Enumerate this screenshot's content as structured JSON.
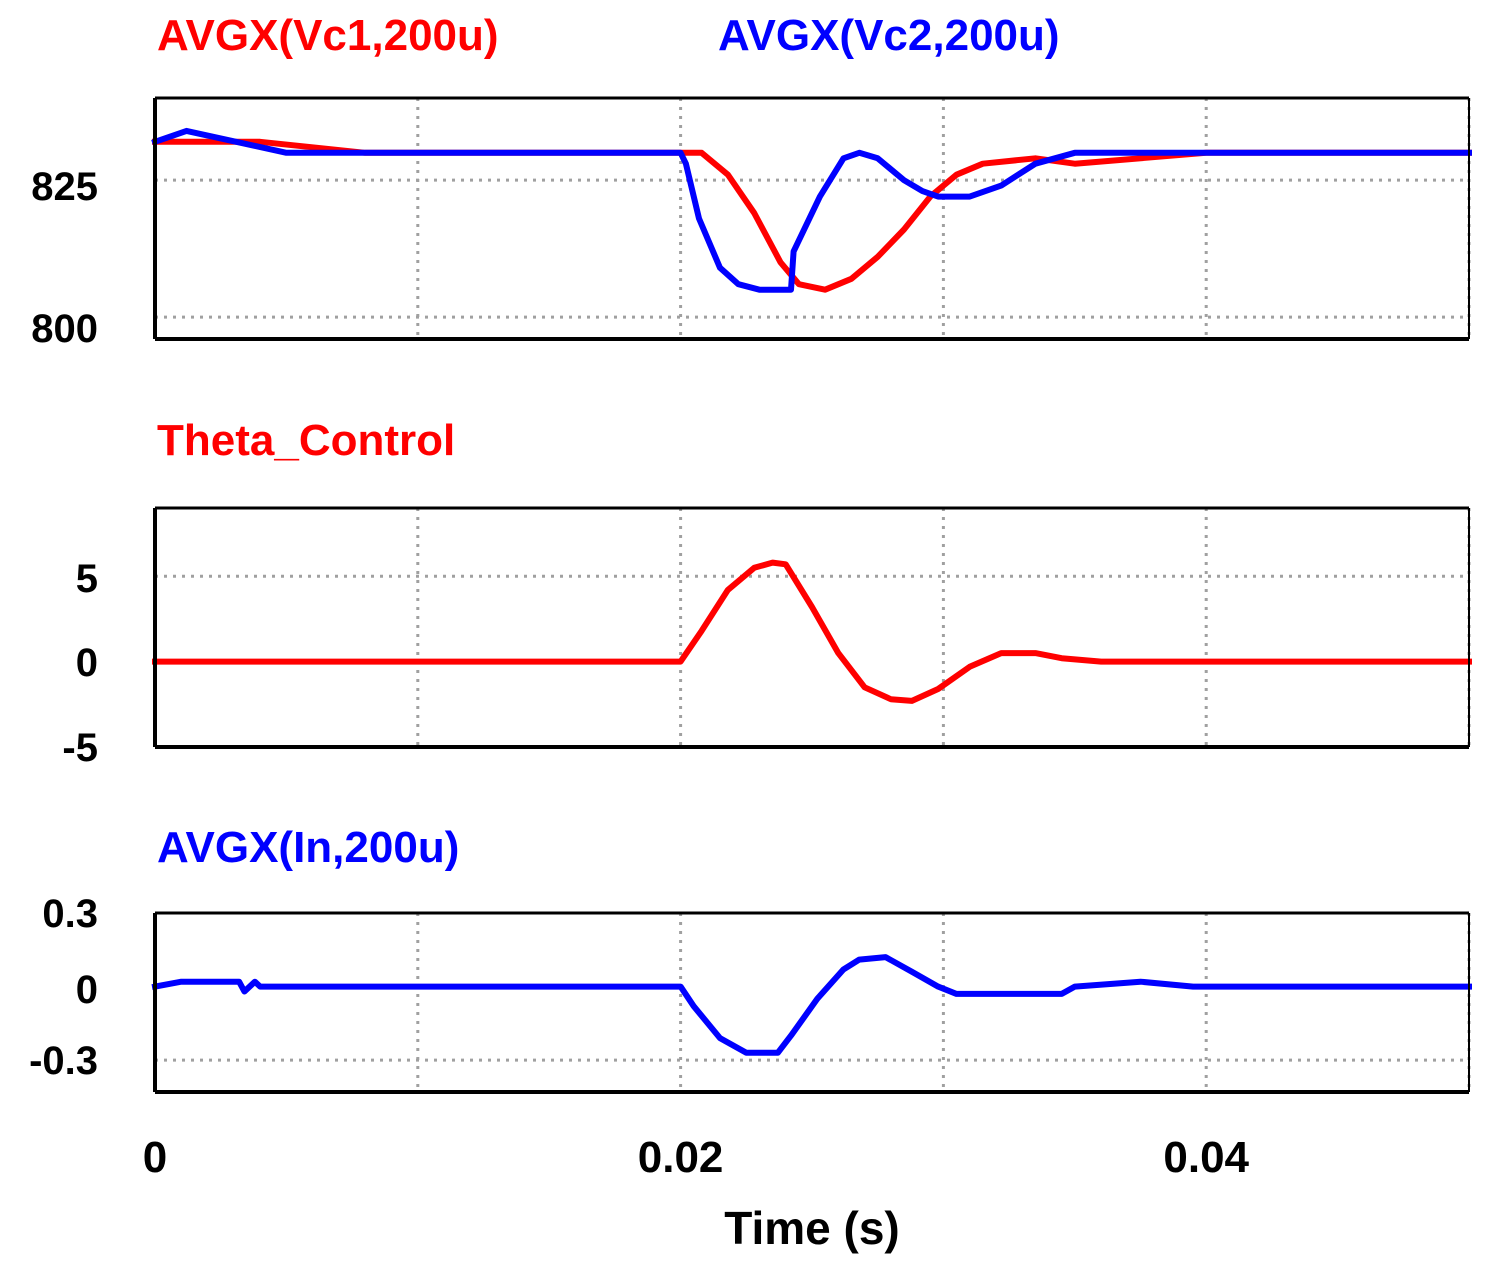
{
  "x_axis": {
    "label": "Time (s)",
    "range": [
      0,
      0.05
    ],
    "ticks": [
      0,
      0.02,
      0.04
    ],
    "tick_labels": [
      "0",
      "0.02",
      "0.04"
    ],
    "grid_ticks": [
      0,
      0.01,
      0.02,
      0.03,
      0.04,
      0.05
    ]
  },
  "colors": {
    "red": "#ff0000",
    "blue": "#0000ff",
    "grid": "#a0a0a0",
    "frame": "#000000"
  },
  "chart_data": [
    {
      "type": "line",
      "xlabel": "",
      "ylim": [
        796,
        840
      ],
      "grid_y": [
        800,
        825
      ],
      "y_ticks": [
        "825",
        "800"
      ],
      "series": [
        {
          "name": "AVGX(Vc1,200u)",
          "color": "#ff0000",
          "x": [
            0,
            0.004,
            0.006,
            0.008,
            0.02,
            0.0208,
            0.0218,
            0.0228,
            0.0238,
            0.0245,
            0.0255,
            0.0265,
            0.0275,
            0.0285,
            0.0295,
            0.0305,
            0.0315,
            0.0335,
            0.035,
            0.04,
            0.05
          ],
          "values": [
            832,
            832,
            831,
            830,
            830,
            830,
            826,
            819,
            810,
            806,
            805,
            807,
            811,
            816,
            822,
            826,
            828,
            829,
            828,
            830,
            830
          ]
        },
        {
          "name": "AVGX(Vc2,200u)",
          "color": "#0000ff",
          "x": [
            0,
            0.0012,
            0.005,
            0.02,
            0.0202,
            0.0207,
            0.0215,
            0.0222,
            0.023,
            0.0242,
            0.0243,
            0.0253,
            0.0262,
            0.0268,
            0.0275,
            0.0285,
            0.0292,
            0.0298,
            0.031,
            0.0322,
            0.0335,
            0.035,
            0.04,
            0.05
          ],
          "values": [
            832,
            834,
            830,
            830,
            828,
            818,
            809,
            806,
            805,
            805,
            812,
            822,
            829,
            830,
            829,
            825,
            823,
            822,
            822,
            824,
            828,
            830,
            830,
            830
          ]
        }
      ]
    },
    {
      "type": "line",
      "xlabel": "",
      "ylim": [
        -5,
        9
      ],
      "grid_y": [
        5
      ],
      "y_ticks": [
        "5",
        "0",
        "-5"
      ],
      "series": [
        {
          "name": "Theta_Control",
          "color": "#ff0000",
          "x": [
            0,
            0.02,
            0.0208,
            0.0218,
            0.0228,
            0.0235,
            0.024,
            0.025,
            0.026,
            0.027,
            0.028,
            0.0288,
            0.0298,
            0.031,
            0.0322,
            0.0335,
            0.0345,
            0.036,
            0.05
          ],
          "values": [
            0,
            0,
            1.8,
            4.2,
            5.5,
            5.8,
            5.7,
            3.2,
            0.5,
            -1.5,
            -2.2,
            -2.3,
            -1.6,
            -0.3,
            0.5,
            0.5,
            0.2,
            0,
            0
          ]
        }
      ]
    },
    {
      "type": "line",
      "xlabel": "Time (s)",
      "ylim": [
        -0.43,
        0.3
      ],
      "grid_y": [
        0.3,
        -0.3
      ],
      "y_ticks": [
        "0.3",
        "0",
        "-0.3"
      ],
      "series": [
        {
          "name": "AVGX(In,200u)",
          "color": "#0000ff",
          "x": [
            0,
            0.001,
            0.0032,
            0.0034,
            0.0038,
            0.004,
            0.02,
            0.0205,
            0.0215,
            0.0225,
            0.0237,
            0.0242,
            0.0252,
            0.0262,
            0.0268,
            0.0278,
            0.0288,
            0.0298,
            0.0305,
            0.0315,
            0.0345,
            0.035,
            0.0375,
            0.0395,
            0.05
          ],
          "values": [
            0,
            0.02,
            0.02,
            -0.02,
            0.02,
            0,
            0,
            -0.08,
            -0.21,
            -0.27,
            -0.27,
            -0.2,
            -0.05,
            0.07,
            0.11,
            0.12,
            0.06,
            0,
            -0.03,
            -0.03,
            -0.03,
            0,
            0.02,
            0,
            0
          ]
        }
      ]
    }
  ]
}
